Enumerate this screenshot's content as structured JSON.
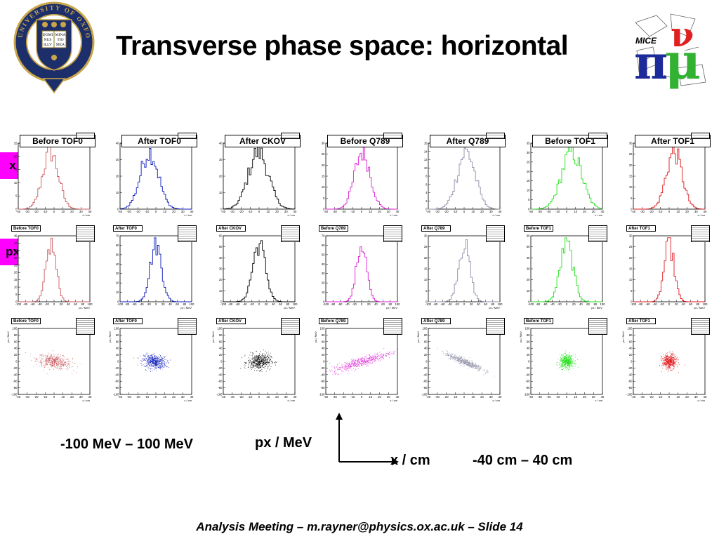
{
  "slide": {
    "title": "Transverse phase space: horizontal",
    "footer": "Analysis Meeting – m.rayner@physics.ox.ac.uk – Slide 14",
    "left_logo_alt": "University of Oxford crest",
    "left_logo_text": "UNIVERSITY OF OXFORD",
    "left_logo_book": [
      "DOMI",
      "NUS",
      "ILLV",
      "MINA",
      "TIO",
      "MEA"
    ],
    "right_logo_alt": "MICE logo",
    "right_logo_text": "MICE",
    "row_labels": [
      "x",
      "px"
    ],
    "range_px": "-100 MeV – 100 MeV",
    "axis_label_px": "px / MeV",
    "axis_label_x": "x / cm",
    "range_x": "-40 cm – 40 cm"
  },
  "chart_data": [
    {
      "type": "histogram",
      "row": "x",
      "panel_title": "Before TOF0",
      "color": "#c9585c",
      "xlim": [
        -40,
        40
      ],
      "y_ticks": [
        0,
        5,
        10,
        15,
        20,
        25
      ],
      "xlabel": "x / cm"
    },
    {
      "type": "histogram",
      "row": "x",
      "panel_title": "After TOF0",
      "color": "#0a1ab8",
      "xlim": [
        -40,
        40
      ],
      "y_ticks": [
        0,
        10,
        20,
        30,
        40
      ],
      "xlabel": "x / cm"
    },
    {
      "type": "histogram",
      "row": "x",
      "panel_title": "After CKOV",
      "color": "#000000",
      "xlim": [
        -40,
        40
      ],
      "y_ticks": [
        0,
        10,
        20,
        30,
        40
      ],
      "xlabel": "x / cm"
    },
    {
      "type": "histogram",
      "row": "x",
      "panel_title": "Before Q789",
      "color": "#dd1fd6",
      "xlim": [
        -40,
        40
      ],
      "y_ticks": [
        0,
        5,
        10,
        15,
        20,
        25,
        30
      ],
      "xlabel": "x / cm"
    },
    {
      "type": "histogram",
      "row": "x",
      "panel_title": "After Q789",
      "color": "#8e8ea8",
      "xlim": [
        -40,
        40
      ],
      "y_ticks": [
        0,
        2,
        4,
        6,
        8,
        10,
        12,
        14,
        16
      ],
      "xlabel": "x / cm"
    },
    {
      "type": "histogram",
      "row": "x",
      "panel_title": "Before TOF1",
      "color": "#22e01a",
      "xlim": [
        -40,
        40
      ],
      "y_ticks": [
        0,
        5,
        10,
        15,
        20,
        25,
        30,
        35
      ],
      "xlabel": "x / cm"
    },
    {
      "type": "histogram",
      "row": "x",
      "panel_title": "After TOF1",
      "color": "#e0171b",
      "xlim": [
        -40,
        40
      ],
      "y_ticks": [
        0,
        5,
        10,
        15,
        20,
        25,
        30
      ],
      "xlabel": "x / cm"
    },
    {
      "type": "histogram",
      "row": "px",
      "panel_title": "Before TOF0",
      "color": "#c9585c",
      "xlim": [
        -100,
        100
      ],
      "y_ticks": [
        0,
        5,
        10,
        15,
        20,
        25,
        30,
        35,
        40,
        45
      ],
      "xlabel": "px / MeV"
    },
    {
      "type": "histogram",
      "row": "px",
      "panel_title": "After TOF0",
      "color": "#0a1ab8",
      "xlim": [
        -100,
        100
      ],
      "y_ticks": [
        0,
        10,
        20,
        30,
        40,
        50,
        60,
        70
      ],
      "xlabel": "px / MeV"
    },
    {
      "type": "histogram",
      "row": "px",
      "panel_title": "After CKOV",
      "color": "#000000",
      "xlim": [
        -100,
        100
      ],
      "y_ticks": [
        0,
        10,
        20,
        30,
        40,
        50,
        60
      ],
      "xlabel": "px / MeV"
    },
    {
      "type": "histogram",
      "row": "px",
      "panel_title": "Before Q789",
      "color": "#dd1fd6",
      "xlim": [
        -100,
        100
      ],
      "y_ticks": [
        0,
        10,
        20,
        30,
        40,
        50,
        60,
        70
      ],
      "xlabel": "px / MeV"
    },
    {
      "type": "histogram",
      "row": "px",
      "panel_title": "After Q789",
      "color": "#8e8ea8",
      "xlim": [
        -100,
        100
      ],
      "y_ticks": [
        0,
        5,
        10,
        15,
        20,
        25,
        30
      ],
      "xlabel": "px / MeV"
    },
    {
      "type": "histogram",
      "row": "px",
      "panel_title": "Before TOF1",
      "color": "#22e01a",
      "xlim": [
        -100,
        100
      ],
      "y_ticks": [
        0,
        10,
        20,
        30,
        40,
        50,
        60
      ],
      "xlabel": "px / MeV"
    },
    {
      "type": "histogram",
      "row": "px",
      "panel_title": "After TOF1",
      "color": "#e0171b",
      "xlim": [
        -100,
        100
      ],
      "y_ticks": [
        0,
        5,
        10,
        15,
        20,
        25,
        30
      ],
      "xlabel": "px / MeV"
    },
    {
      "type": "scatter",
      "row": "phase",
      "panel_title": "Before TOF0",
      "color": "#c9585c",
      "xlim": [
        -40,
        40
      ],
      "ylim": [
        -100,
        100
      ],
      "y_ticks": [
        -100,
        -80,
        -60,
        -40,
        -20,
        0,
        20,
        40,
        60,
        80,
        100
      ],
      "xlabel": "x / cm",
      "ylabel": "px / MeV"
    },
    {
      "type": "scatter",
      "row": "phase",
      "panel_title": "After TOF0",
      "color": "#0a1ab8",
      "xlim": [
        -40,
        40
      ],
      "ylim": [
        -100,
        100
      ],
      "y_ticks": [
        -100,
        -80,
        -60,
        -40,
        -20,
        0,
        20,
        40,
        60,
        80,
        100
      ],
      "xlabel": "x / cm",
      "ylabel": "px / MeV"
    },
    {
      "type": "scatter",
      "row": "phase",
      "panel_title": "After CKOV",
      "color": "#000000",
      "xlim": [
        -40,
        40
      ],
      "ylim": [
        -100,
        100
      ],
      "y_ticks": [
        -100,
        -80,
        -60,
        -40,
        -20,
        0,
        20,
        40,
        60,
        80,
        100
      ],
      "xlabel": "x / cm",
      "ylabel": "px / MeV"
    },
    {
      "type": "scatter",
      "row": "phase",
      "panel_title": "Before Q789",
      "color": "#dd1fd6",
      "xlim": [
        -40,
        40
      ],
      "ylim": [
        -100,
        100
      ],
      "y_ticks": [
        -100,
        -80,
        -60,
        -40,
        -20,
        0,
        20,
        40,
        60,
        80,
        100
      ],
      "xlabel": "x / cm",
      "ylabel": "px / MeV"
    },
    {
      "type": "scatter",
      "row": "phase",
      "panel_title": "After Q789",
      "color": "#8e8ea8",
      "xlim": [
        -40,
        40
      ],
      "ylim": [
        -100,
        100
      ],
      "y_ticks": [
        -100,
        -80,
        -60,
        -40,
        -20,
        0,
        20,
        40,
        60,
        80,
        100
      ],
      "xlabel": "x / cm",
      "ylabel": "px / MeV"
    },
    {
      "type": "scatter",
      "row": "phase",
      "panel_title": "Before TOF1",
      "color": "#22e01a",
      "xlim": [
        -40,
        40
      ],
      "ylim": [
        -100,
        100
      ],
      "y_ticks": [
        -100,
        -80,
        -60,
        -40,
        -20,
        0,
        20,
        40,
        60,
        80,
        100
      ],
      "xlabel": "x / cm",
      "ylabel": "px / MeV"
    },
    {
      "type": "scatter",
      "row": "phase",
      "panel_title": "After TOF1",
      "color": "#e0171b",
      "xlim": [
        -40,
        40
      ],
      "ylim": [
        -100,
        100
      ],
      "y_ticks": [
        -100,
        -80,
        -60,
        -40,
        -20,
        0,
        20,
        40,
        60,
        80,
        100
      ],
      "xlabel": "x / cm",
      "ylabel": "px / MeV"
    }
  ]
}
